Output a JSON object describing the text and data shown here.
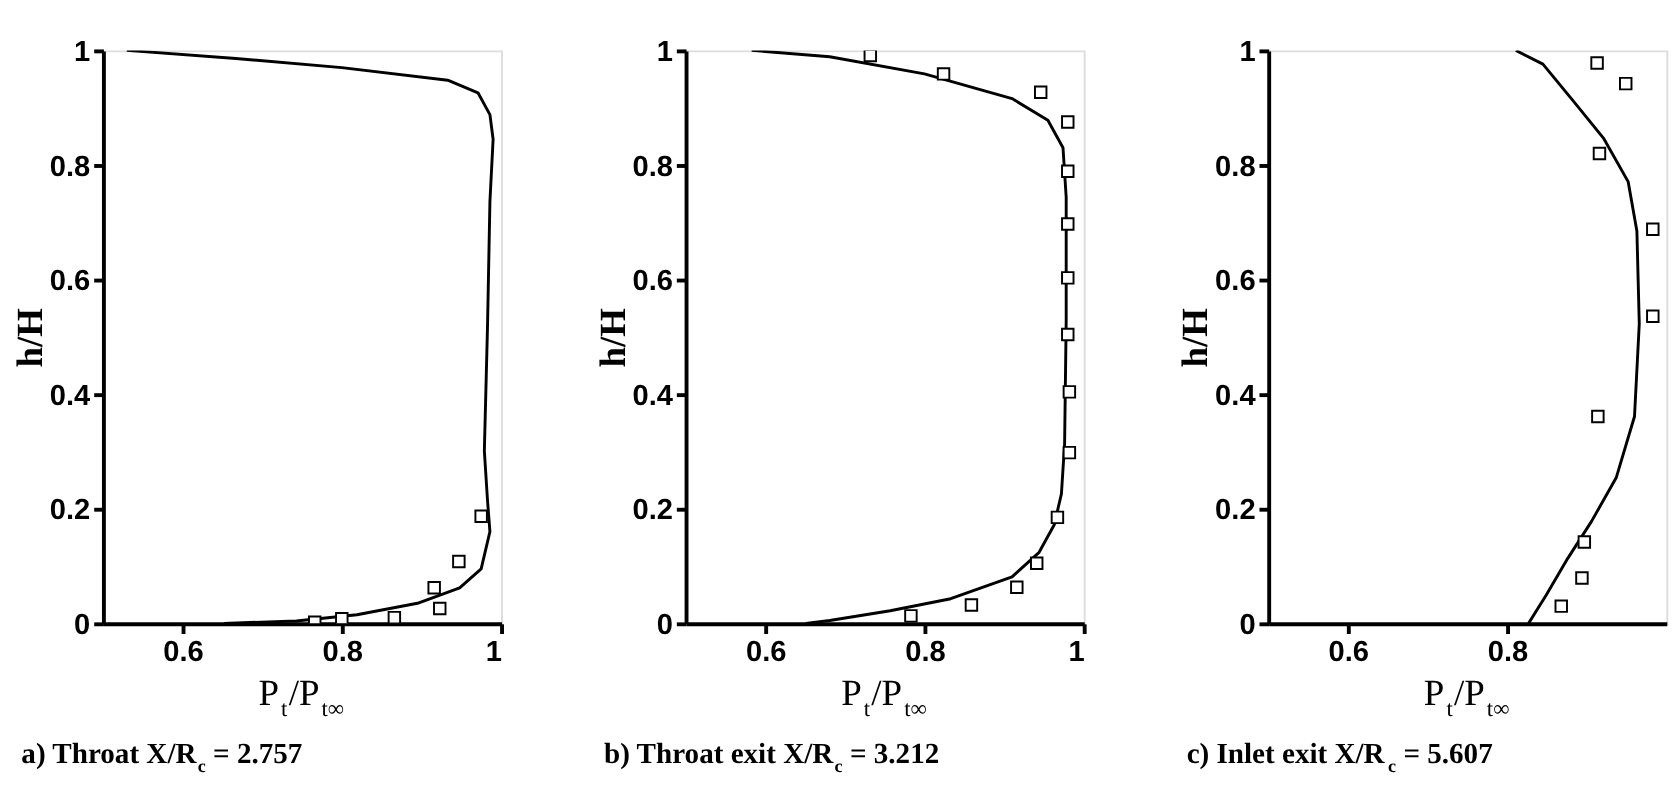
{
  "chart_data": [
    {
      "type": "line",
      "title": "a) Throat X/R$_{c}$ = 2.757",
      "xlabel": "P$_{t}$/P$_{t∞}$",
      "ylabel": "h/H",
      "xlim": [
        0.5,
        1.0
      ],
      "ylim": [
        0,
        1
      ],
      "xticks": [
        0.6,
        0.8,
        1
      ],
      "yticks": [
        0,
        0.2,
        0.4,
        0.6,
        0.8,
        1
      ],
      "grid": false,
      "series": [
        {
          "color": "#000000",
          "line_style": "solid",
          "x": [
            0.53,
            0.667,
            0.8,
            0.933,
            0.971,
            0.986,
            0.99,
            0.986,
            0.983,
            0.979,
            0.983,
            0.986,
            0.975,
            0.948,
            0.895,
            0.819,
            0.743,
            0.652
          ],
          "values": [
            1.0,
            0.986,
            0.97,
            0.948,
            0.926,
            0.888,
            0.845,
            0.736,
            0.52,
            0.301,
            0.214,
            0.16,
            0.095,
            0.062,
            0.035,
            0.015,
            0.004,
            0.0
          ]
        },
        {
          "type": "scatter",
          "color": "#000000",
          "marker": "square",
          "x": [
            0.975,
            0.947,
            0.916,
            0.923,
            0.866,
            0.8,
            0.766
          ],
          "values": [
            0.187,
            0.108,
            0.062,
            0.026,
            0.01,
            0.008,
            0.002
          ]
        }
      ]
    },
    {
      "type": "line",
      "title": "b) Throat exit X/R$_{c}$ = 3.212",
      "xlabel": "P$_{t}$/P$_{t∞}$",
      "ylabel": "h/H",
      "xlim": [
        0.5,
        1.0
      ],
      "ylim": [
        0,
        1
      ],
      "xticks": [
        0.6,
        0.8,
        1
      ],
      "yticks": [
        0,
        0.2,
        0.4,
        0.6,
        0.8,
        1
      ],
      "grid": false,
      "series": [
        {
          "color": "#000000",
          "line_style": "solid",
          "x": [
            0.583,
            0.681,
            0.8,
            0.91,
            0.955,
            0.974,
            0.978,
            0.978,
            0.976,
            0.972,
            0.963,
            0.944,
            0.91,
            0.833,
            0.757,
            0.681,
            0.651
          ],
          "values": [
            1.0,
            0.989,
            0.959,
            0.916,
            0.878,
            0.83,
            0.744,
            0.528,
            0.313,
            0.226,
            0.172,
            0.124,
            0.081,
            0.043,
            0.022,
            0.005,
            0.0
          ]
        },
        {
          "type": "scatter",
          "color": "#000000",
          "marker": "square",
          "x": [
            0.732,
            0.824,
            0.946,
            0.98,
            0.98,
            0.98,
            0.98,
            0.98,
            0.982,
            0.982,
            0.967,
            0.941,
            0.916,
            0.859,
            0.783
          ],
          "values": [
            0.991,
            0.959,
            0.927,
            0.875,
            0.789,
            0.697,
            0.603,
            0.504,
            0.404,
            0.298,
            0.185,
            0.105,
            0.063,
            0.032,
            0.013
          ]
        }
      ]
    },
    {
      "type": "line",
      "title": "c) Inlet exit X/R$_{c}$ = 5.607",
      "xlabel": "P$_{t}$/P$_{t∞}$",
      "ylabel": "h/H",
      "xlim": [
        0.5,
        1.0
      ],
      "ylim": [
        0,
        1
      ],
      "xticks": [
        0.6,
        0.8
      ],
      "yticks": [
        0,
        0.2,
        0.4,
        0.6,
        0.8,
        1
      ],
      "grid": false,
      "series": [
        {
          "color": "#000000",
          "line_style": "solid",
          "x": [
            0.811,
            0.845,
            0.883,
            0.921,
            0.952,
            0.963,
            0.966,
            0.96,
            0.937,
            0.906,
            0.876,
            0.849,
            0.827
          ],
          "values": [
            1.0,
            0.976,
            0.912,
            0.847,
            0.771,
            0.685,
            0.523,
            0.361,
            0.254,
            0.178,
            0.113,
            0.049,
            0.0
          ]
        },
        {
          "type": "scatter",
          "color": "#000000",
          "marker": "square",
          "x": [
            0.913,
            0.949,
            0.916,
            0.983,
            0.983,
            0.914,
            0.897,
            0.894,
            0.868
          ],
          "values": [
            0.978,
            0.942,
            0.82,
            0.688,
            0.536,
            0.361,
            0.142,
            0.079,
            0.03
          ]
        }
      ]
    }
  ]
}
